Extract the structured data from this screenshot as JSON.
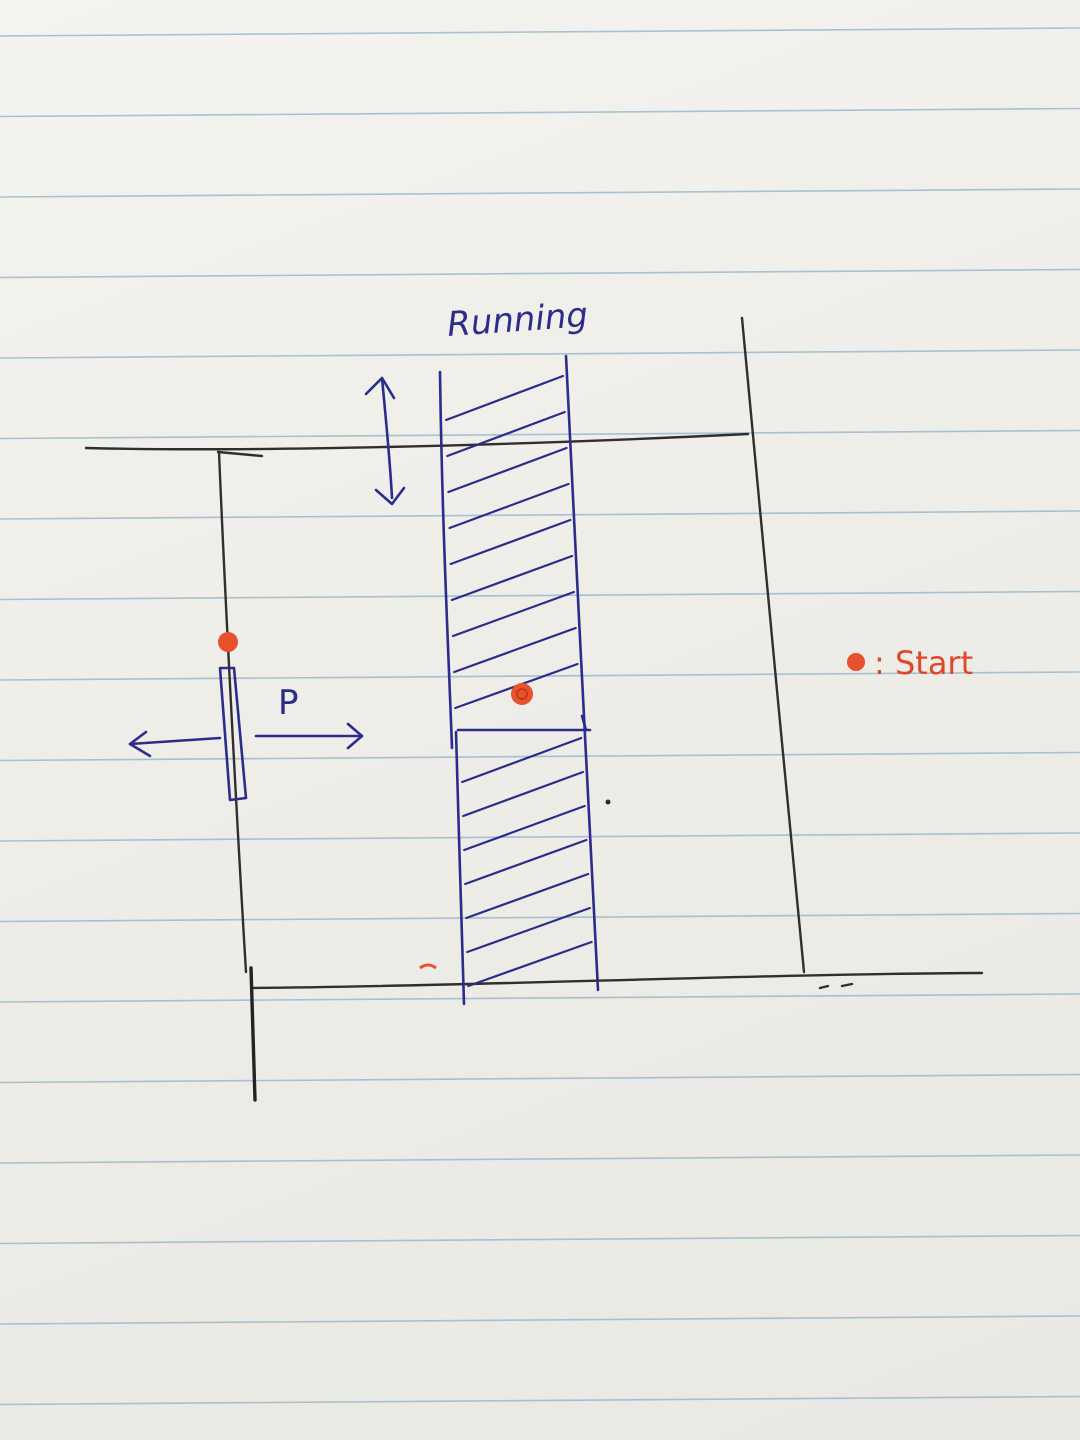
{
  "labels": {
    "running": "Running",
    "force": "P",
    "legend_text": ": Start"
  },
  "colors": {
    "paper": "#f0efea",
    "rule_line": "#8fb2cc",
    "pencil": "#2f2f2f",
    "ink_blue": "#2c2c8c",
    "marker_red": "#e8502e"
  },
  "legend": {
    "marker": "red-dot",
    "meaning": ": Start"
  }
}
